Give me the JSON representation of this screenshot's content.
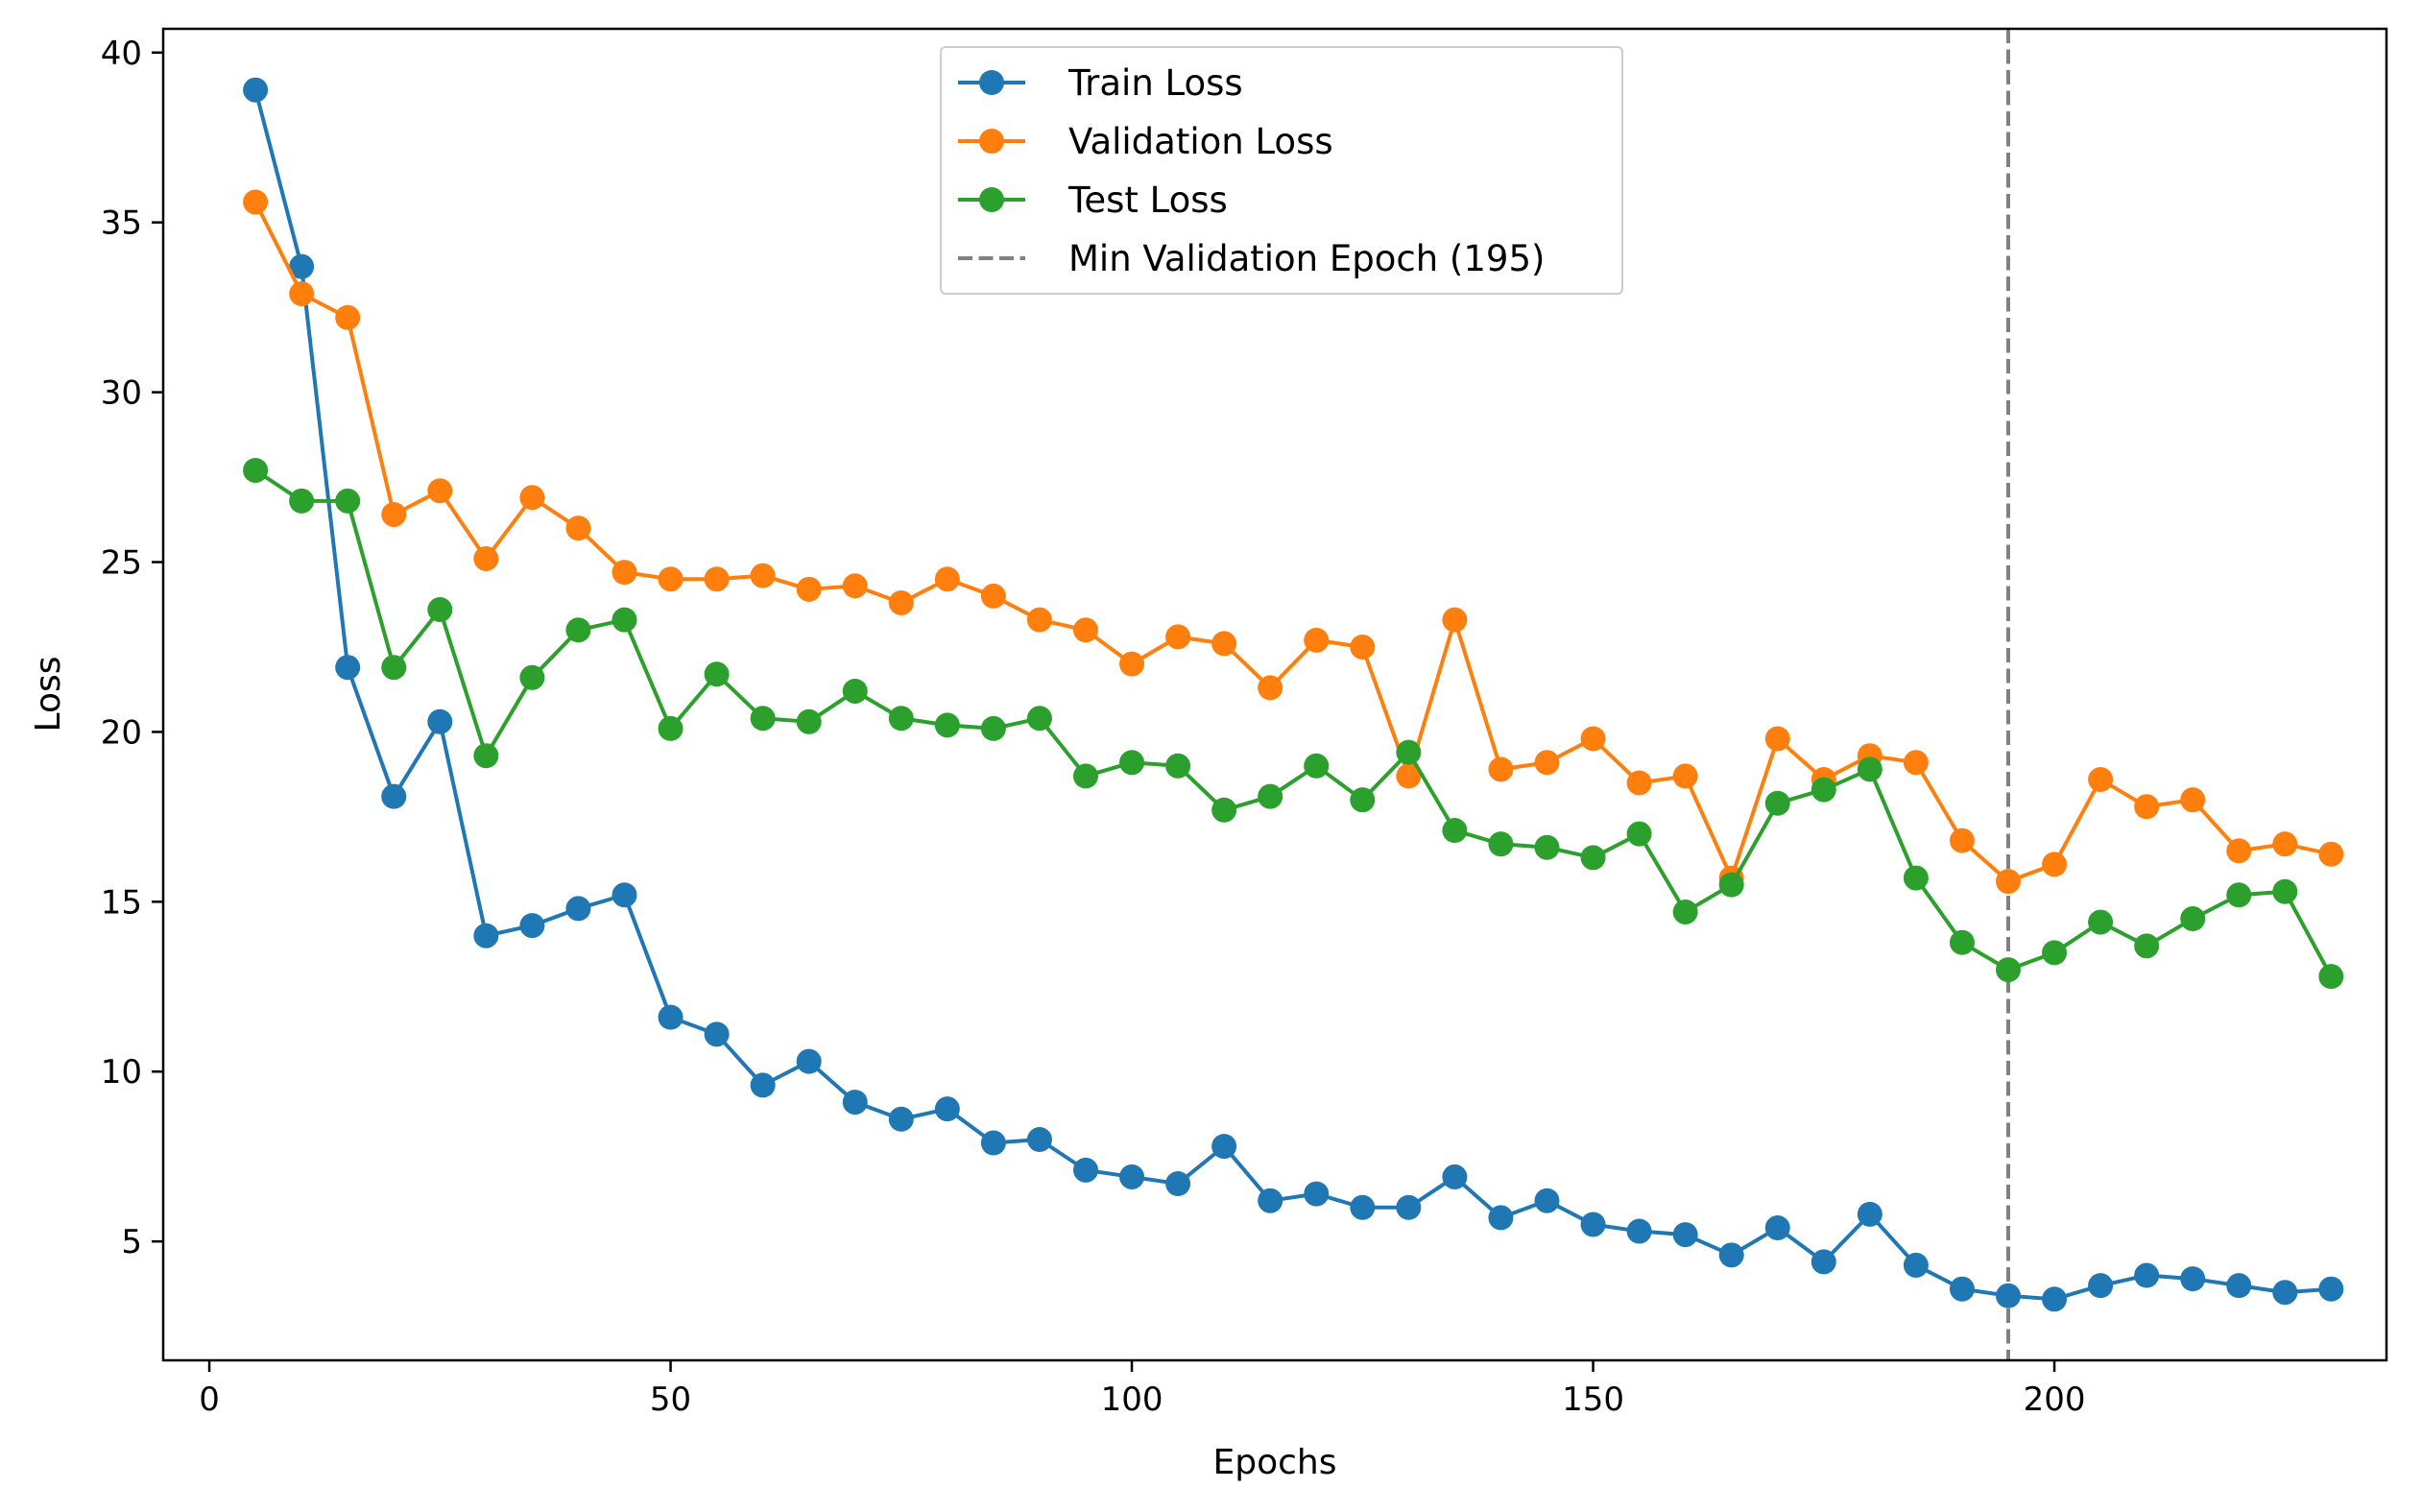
{
  "chart_data": {
    "type": "line",
    "xlabel": "Epochs",
    "ylabel": "Loss",
    "xlim": [
      -5,
      236
    ],
    "ylim": [
      1.5,
      40.7
    ],
    "xticks": [
      0,
      50,
      100,
      150,
      200
    ],
    "yticks": [
      5,
      10,
      15,
      20,
      25,
      30,
      35,
      40
    ],
    "grid": false,
    "legend_position": "top-center",
    "x": [
      5,
      10,
      15,
      20,
      25,
      30,
      35,
      40,
      45,
      50,
      55,
      60,
      65,
      70,
      75,
      80,
      85,
      90,
      95,
      100,
      105,
      110,
      115,
      120,
      125,
      130,
      135,
      140,
      145,
      150,
      155,
      160,
      165,
      170,
      175,
      180,
      185,
      190,
      195,
      200,
      205,
      210,
      215,
      220,
      225,
      230
    ],
    "series": [
      {
        "name": "Train Loss",
        "color": "#1f77b4",
        "marker": "circle",
        "values": [
          38.9,
          33.7,
          21.9,
          18.1,
          20.3,
          14.0,
          14.3,
          14.8,
          15.2,
          11.6,
          11.1,
          9.6,
          10.3,
          9.1,
          8.6,
          8.9,
          7.9,
          8.0,
          7.1,
          6.9,
          6.7,
          7.8,
          6.2,
          6.4,
          6.0,
          6.0,
          6.9,
          5.7,
          6.2,
          5.5,
          5.3,
          5.2,
          4.6,
          5.4,
          4.4,
          5.8,
          4.3,
          3.6,
          3.4,
          3.3,
          3.7,
          4.0,
          3.9,
          3.7,
          3.5,
          3.6
        ]
      },
      {
        "name": "Validation Loss",
        "color": "#ff7f0e",
        "marker": "circle",
        "values": [
          35.6,
          32.9,
          32.2,
          26.4,
          27.1,
          25.1,
          26.9,
          26.0,
          24.7,
          24.5,
          24.5,
          24.6,
          24.2,
          24.3,
          23.8,
          24.5,
          24.0,
          23.3,
          23.0,
          22.0,
          22.8,
          22.6,
          21.3,
          22.7,
          22.5,
          18.7,
          23.3,
          18.9,
          19.1,
          19.8,
          18.5,
          18.7,
          15.7,
          19.8,
          18.6,
          19.3,
          19.1,
          16.8,
          15.6,
          16.1,
          18.6,
          17.8,
          18.0,
          16.5,
          16.7,
          16.4
        ]
      },
      {
        "name": "Test Loss",
        "color": "#2ca02c",
        "marker": "circle",
        "values": [
          27.7,
          26.8,
          26.8,
          21.9,
          23.6,
          19.3,
          21.6,
          23.0,
          23.3,
          20.1,
          21.7,
          20.4,
          20.3,
          21.2,
          20.4,
          20.2,
          20.1,
          20.4,
          18.7,
          19.1,
          19.0,
          17.7,
          18.1,
          19.0,
          18.0,
          19.4,
          17.1,
          16.7,
          16.6,
          16.3,
          17.0,
          14.7,
          15.5,
          17.9,
          18.3,
          18.9,
          15.7,
          13.8,
          13.0,
          13.5,
          14.4,
          13.7,
          14.5,
          15.2,
          15.3,
          12.8
        ]
      }
    ],
    "vline": {
      "x": 195,
      "label": "Min Validation Epoch (195)",
      "color": "#808080",
      "style": "dashed"
    }
  }
}
